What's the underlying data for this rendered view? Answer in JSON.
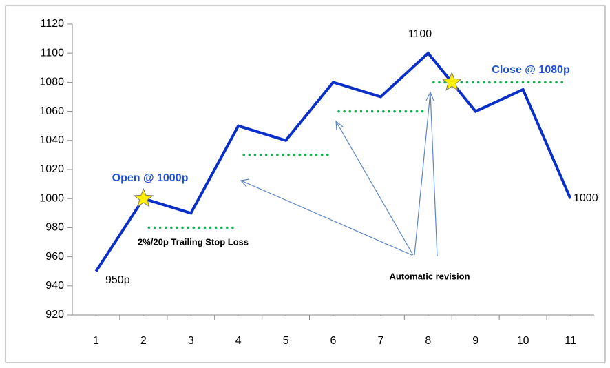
{
  "chart_data": {
    "type": "line",
    "x": [
      1,
      2,
      3,
      4,
      5,
      6,
      7,
      8,
      9,
      10,
      11
    ],
    "series": [
      {
        "color": "#0a2fc8",
        "values": [
          950,
          1000,
          990,
          1050,
          1040,
          1080,
          1070,
          1100,
          1060,
          1075,
          1000
        ]
      }
    ],
    "stop_levels": [
      {
        "from": 2,
        "to": 4,
        "value": 980
      },
      {
        "from": 4,
        "to": 6,
        "value": 1030
      },
      {
        "from": 6,
        "to": 8,
        "value": 1060
      },
      {
        "from": 8,
        "to": 11,
        "value": 1080
      }
    ],
    "stop_color": "#10b050",
    "stars": [
      {
        "x": 2,
        "y": 1000
      },
      {
        "x": 8.5,
        "y": 1080
      }
    ],
    "star_color": "#ffee00",
    "xlim": [
      0.5,
      11.5
    ],
    "xticks": [
      1,
      2,
      3,
      4,
      5,
      6,
      7,
      8,
      9,
      10,
      11
    ],
    "ylim": [
      920,
      1120
    ],
    "yticks": [
      920,
      940,
      960,
      980,
      1000,
      1020,
      1040,
      1060,
      1080,
      1100,
      1120
    ],
    "annotations": [
      "Open @ 1000p",
      "Close @ 1080p",
      "1100",
      "950p",
      "1000",
      "2%/20p Trailing Stop Loss",
      "Automatic revision"
    ]
  }
}
